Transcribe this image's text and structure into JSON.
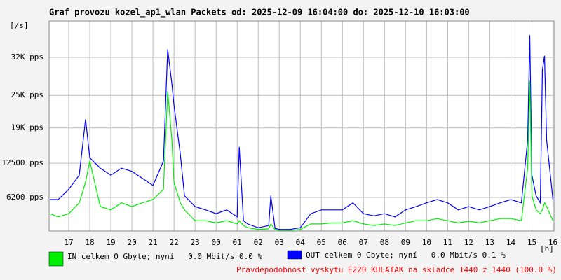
{
  "chart_data": {
    "type": "line",
    "title": "Graf provozu kozel_ap1_wlan Packets od: 2025-12-09 16:04:00 do: 2025-12-10 16:03:00",
    "y_unit": "[/s]",
    "x_unit": "[h]",
    "footer": "Pravdepodobnost vyskytu E220 KULATAK na skladce 1440 z 1440 (100.0 %)",
    "grid": true,
    "xlim": [
      16.0667,
      40.05
    ],
    "ylim": [
      0,
      38700
    ],
    "xticks": [
      17,
      18,
      19,
      20,
      21,
      22,
      23,
      {
        "value": 24,
        "label": "00"
      },
      {
        "value": 25,
        "label": "01"
      },
      {
        "value": 26,
        "label": "02"
      },
      {
        "value": 27,
        "label": "03"
      },
      {
        "value": 28,
        "label": "04"
      },
      {
        "value": 29,
        "label": "05"
      },
      {
        "value": 30,
        "label": "06"
      },
      {
        "value": 31,
        "label": "07"
      },
      {
        "value": 32,
        "label": "08"
      },
      {
        "value": 33,
        "label": "09"
      },
      {
        "value": 34,
        "label": "10"
      },
      {
        "value": 35,
        "label": "11"
      },
      {
        "value": 36,
        "label": "12"
      },
      {
        "value": 37,
        "label": "13"
      },
      {
        "value": 38,
        "label": "14"
      },
      {
        "value": 39,
        "label": "15"
      },
      {
        "value": 40,
        "label": "16"
      }
    ],
    "yticks": [
      {
        "value": 6200,
        "label": "6200 pps"
      },
      {
        "value": 12500,
        "label": "12500 pps"
      },
      {
        "value": 19000,
        "label": "19K pps"
      },
      {
        "value": 25000,
        "label": "25K pps"
      },
      {
        "value": 32000,
        "label": "32K pps"
      }
    ],
    "x": [
      16.1,
      16.5,
      17,
      17.5,
      17.8,
      18,
      18.5,
      19,
      19.5,
      20,
      20.5,
      21,
      21.5,
      21.7,
      21.9,
      22,
      22.3,
      22.5,
      23,
      23.5,
      24,
      24.5,
      25,
      25.1,
      25.3,
      25.5,
      26,
      26.5,
      26.6,
      26.8,
      27,
      27.5,
      28,
      28.5,
      29,
      29.5,
      30,
      30.5,
      31,
      31.5,
      32,
      32.5,
      33,
      33.5,
      34,
      34.5,
      35,
      35.5,
      36,
      36.5,
      37,
      37.5,
      38,
      38.5,
      38.8,
      38.9,
      39,
      39.2,
      39.4,
      39.5,
      39.6,
      39.7,
      40
    ],
    "series": [
      {
        "name": "OUT celkem 0 Gbyte; nyní   0.0 Mbit/s 0.1 %",
        "color": "#0000ff",
        "values": [
          5800,
          5800,
          7700,
          10300,
          20600,
          13500,
          11600,
          10300,
          11600,
          11000,
          9700,
          8400,
          12900,
          33500,
          27100,
          23200,
          14200,
          6500,
          4500,
          3900,
          3200,
          3900,
          2600,
          15500,
          1900,
          1300,
          600,
          1000,
          6500,
          500,
          300,
          300,
          600,
          3200,
          3900,
          3900,
          3900,
          5200,
          3200,
          2800,
          3200,
          2600,
          3900,
          4500,
          5200,
          5800,
          5200,
          3900,
          4500,
          3900,
          4500,
          5200,
          5800,
          5200,
          16800,
          36100,
          10300,
          6500,
          5200,
          29700,
          32300,
          16800,
          5800
        ]
      },
      {
        "name": "IN celkem 0 Gbyte; nyní   0.0 Mbit/s 0.0 %",
        "color": "#00ee00",
        "values": [
          3200,
          2600,
          3200,
          5200,
          9000,
          12900,
          4500,
          3900,
          5200,
          4500,
          5200,
          5800,
          7700,
          25800,
          16800,
          9000,
          5200,
          3900,
          1900,
          1900,
          1500,
          1900,
          1300,
          1900,
          1000,
          600,
          300,
          400,
          1300,
          300,
          100,
          100,
          300,
          1300,
          1300,
          1500,
          1500,
          1900,
          1300,
          1000,
          1300,
          1000,
          1500,
          1900,
          1900,
          2300,
          1900,
          1500,
          1800,
          1500,
          1900,
          2300,
          2300,
          1900,
          11600,
          27700,
          6500,
          3900,
          3200,
          3900,
          5200,
          4500,
          1900
        ]
      }
    ]
  }
}
